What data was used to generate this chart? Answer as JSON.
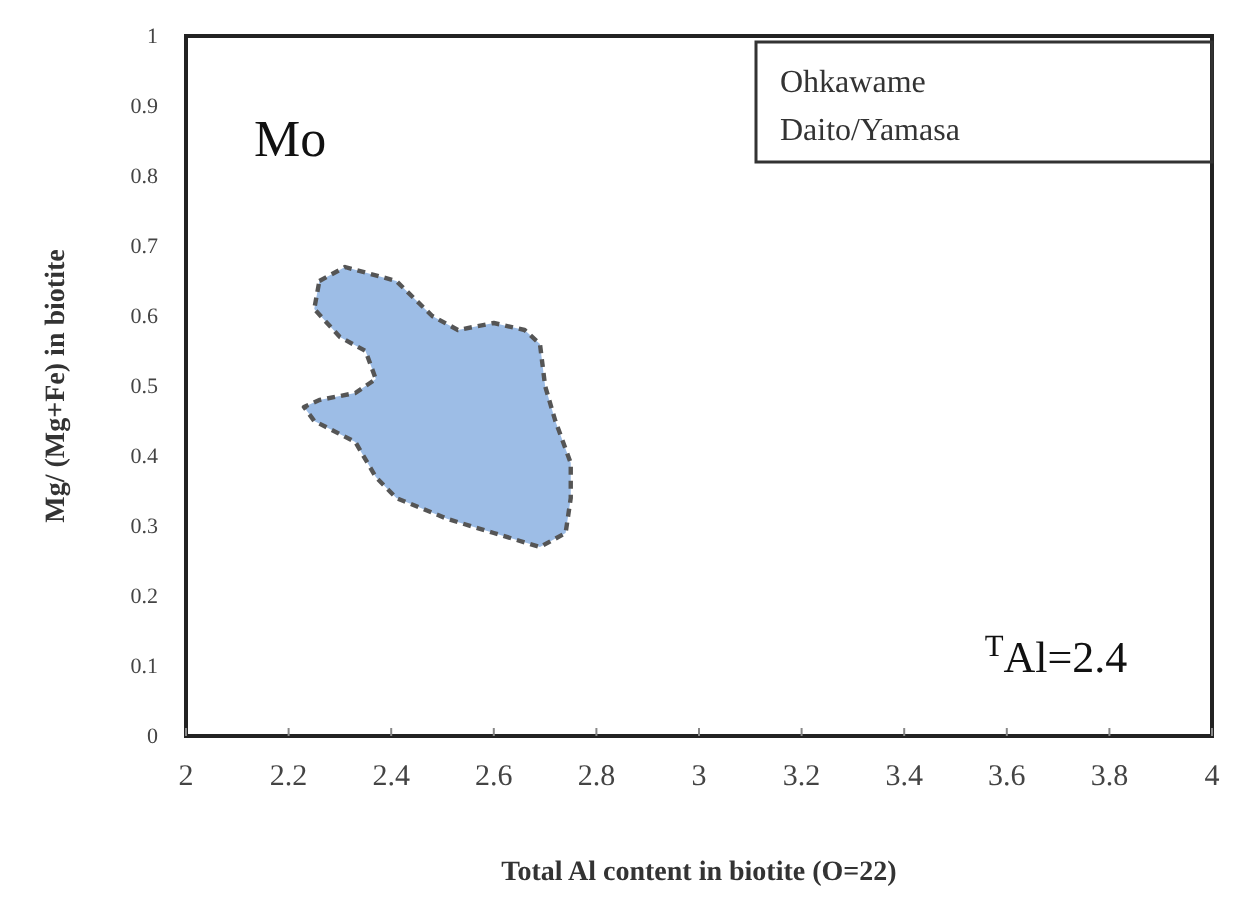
{
  "chart_data": {
    "type": "area",
    "xlabel": "Total  Al  content in biotite (O=22)",
    "ylabel": "Mg/ (Mg+Fe) in biotite",
    "xlim": [
      2,
      4
    ],
    "xticks": [
      2,
      2.2,
      2.4,
      2.6,
      2.8,
      3,
      3.2,
      3.4,
      3.6,
      3.8,
      4
    ],
    "ylim": [
      0,
      1
    ],
    "yticks": [
      0,
      0.1,
      0.2,
      0.3,
      0.4,
      0.5,
      0.6,
      0.7,
      0.8,
      0.9,
      1
    ],
    "grid": false,
    "line_style": "dashed",
    "series": [
      {
        "color": "#9dbde6",
        "x": [
          2.26,
          2.31,
          2.41,
          2.48,
          2.53,
          2.6,
          2.66,
          2.69,
          2.7,
          2.72,
          2.75,
          2.75,
          2.74,
          2.69,
          2.6,
          2.51,
          2.41,
          2.37,
          2.33,
          2.25,
          2.23,
          2.26,
          2.33,
          2.37,
          2.35,
          2.3,
          2.25
        ],
        "values": [
          0.65,
          0.67,
          0.65,
          0.6,
          0.58,
          0.59,
          0.58,
          0.56,
          0.5,
          0.45,
          0.39,
          0.34,
          0.29,
          0.27,
          0.29,
          0.31,
          0.34,
          0.37,
          0.42,
          0.45,
          0.47,
          0.48,
          0.49,
          0.51,
          0.55,
          0.57,
          0.61
        ]
      }
    ],
    "annotations": [
      "Mo",
      "Ohkawame",
      "Daito/Yamasa",
      "$^{T}$Al=2.4"
    ]
  }
}
